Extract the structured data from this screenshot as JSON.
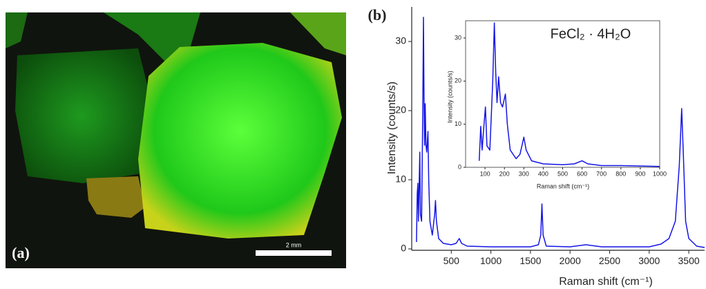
{
  "photo": {
    "label": "(a)",
    "scale_bar": "2 mm"
  },
  "chart_data": [
    {
      "type": "line",
      "label": "(b)",
      "xlabel": "Raman shift (cm⁻¹)",
      "ylabel": "Intensity (counts/s)",
      "xlim": [
        0,
        3700
      ],
      "ylim": [
        0,
        35
      ],
      "xticks": [
        500,
        1000,
        1500,
        2000,
        2500,
        3000,
        3500
      ],
      "yticks": [
        0,
        10,
        20,
        30
      ],
      "x": [
        60,
        70,
        78,
        85,
        95,
        102,
        110,
        125,
        140,
        148,
        155,
        162,
        170,
        180,
        190,
        205,
        215,
        230,
        260,
        290,
        300,
        312,
        340,
        400,
        500,
        560,
        600,
        630,
        700,
        1000,
        1500,
        1600,
        1630,
        1645,
        1660,
        1700,
        2000,
        2200,
        2400,
        3000,
        3150,
        3250,
        3330,
        3380,
        3410,
        3430,
        3460,
        3500,
        3600,
        3700
      ],
      "series": [
        {
          "color": "#1414e6",
          "values": [
            1,
            8,
            9.5,
            4,
            10,
            14,
            5,
            4,
            20,
            33.5,
            22,
            15,
            21,
            15,
            14,
            17,
            10,
            4,
            2,
            5,
            7,
            4,
            1.5,
            0.8,
            0.6,
            0.8,
            1.5,
            0.8,
            0.4,
            0.3,
            0.3,
            0.6,
            2,
            6.5,
            2,
            0.4,
            0.3,
            0.6,
            0.3,
            0.3,
            0.7,
            1.5,
            4,
            12,
            20.3,
            14,
            4,
            1.5,
            0.4,
            0.2
          ]
        }
      ]
    },
    {
      "type": "line",
      "annotation": "FeCl₂ · 4H₂O",
      "xlabel": "Raman shift (cm⁻¹)",
      "ylabel": "Intensity (counts/s)",
      "xlim": [
        0,
        1000
      ],
      "ylim": [
        0,
        34
      ],
      "xticks": [
        100,
        200,
        300,
        400,
        500,
        600,
        700,
        800,
        900,
        1000
      ],
      "yticks": [
        0,
        10,
        20,
        30
      ],
      "x": [
        70,
        78,
        85,
        95,
        102,
        110,
        125,
        140,
        148,
        155,
        162,
        170,
        180,
        190,
        205,
        215,
        230,
        260,
        280,
        300,
        312,
        340,
        400,
        500,
        560,
        600,
        630,
        700,
        800,
        900,
        1000
      ],
      "series": [
        {
          "color": "#1414e6",
          "values": [
            1.5,
            9.5,
            4,
            10,
            14,
            5,
            4,
            20,
            33.5,
            22,
            15,
            21,
            15,
            14,
            17,
            10,
            4,
            2,
            3,
            7,
            4,
            1.5,
            0.8,
            0.6,
            0.8,
            1.5,
            0.8,
            0.4,
            0.4,
            0.3,
            0.2
          ]
        }
      ]
    }
  ]
}
